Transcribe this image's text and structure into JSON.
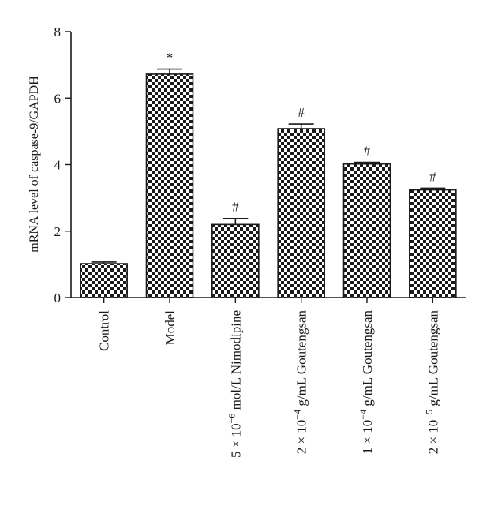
{
  "chart_data": {
    "type": "bar",
    "title": "",
    "xlabel": "",
    "ylabel": "mRNA level of caspase-9/GAPDH",
    "ylim": [
      0,
      8
    ],
    "yticks": [
      "0",
      "2",
      "4",
      "6",
      "8"
    ],
    "grid": false,
    "legend": "none",
    "bar_pattern": "checkerboard",
    "bar_color": "#1a1a1a",
    "categories": [
      {
        "prefix": "Control",
        "sup": "",
        "suffix": ""
      },
      {
        "prefix": "Model",
        "sup": "",
        "suffix": ""
      },
      {
        "prefix": "5 × 10",
        "sup": "−6",
        "suffix": " mol/L Nimodipine"
      },
      {
        "prefix": "2 × 10",
        "sup": "−4",
        "suffix": " g/mL Goutengsan"
      },
      {
        "prefix": "1 × 10",
        "sup": "−4",
        "suffix": " g/mL Goutengsan"
      },
      {
        "prefix": "2 × 10",
        "sup": "−5",
        "suffix": " g/mL Goutengsan"
      }
    ],
    "values": [
      1.02,
      6.72,
      2.2,
      5.08,
      4.02,
      3.24
    ],
    "errors": [
      0.05,
      0.15,
      0.18,
      0.14,
      0.05,
      0.05
    ],
    "annotations": [
      "",
      "*",
      "#",
      "#",
      "#",
      "#"
    ]
  }
}
